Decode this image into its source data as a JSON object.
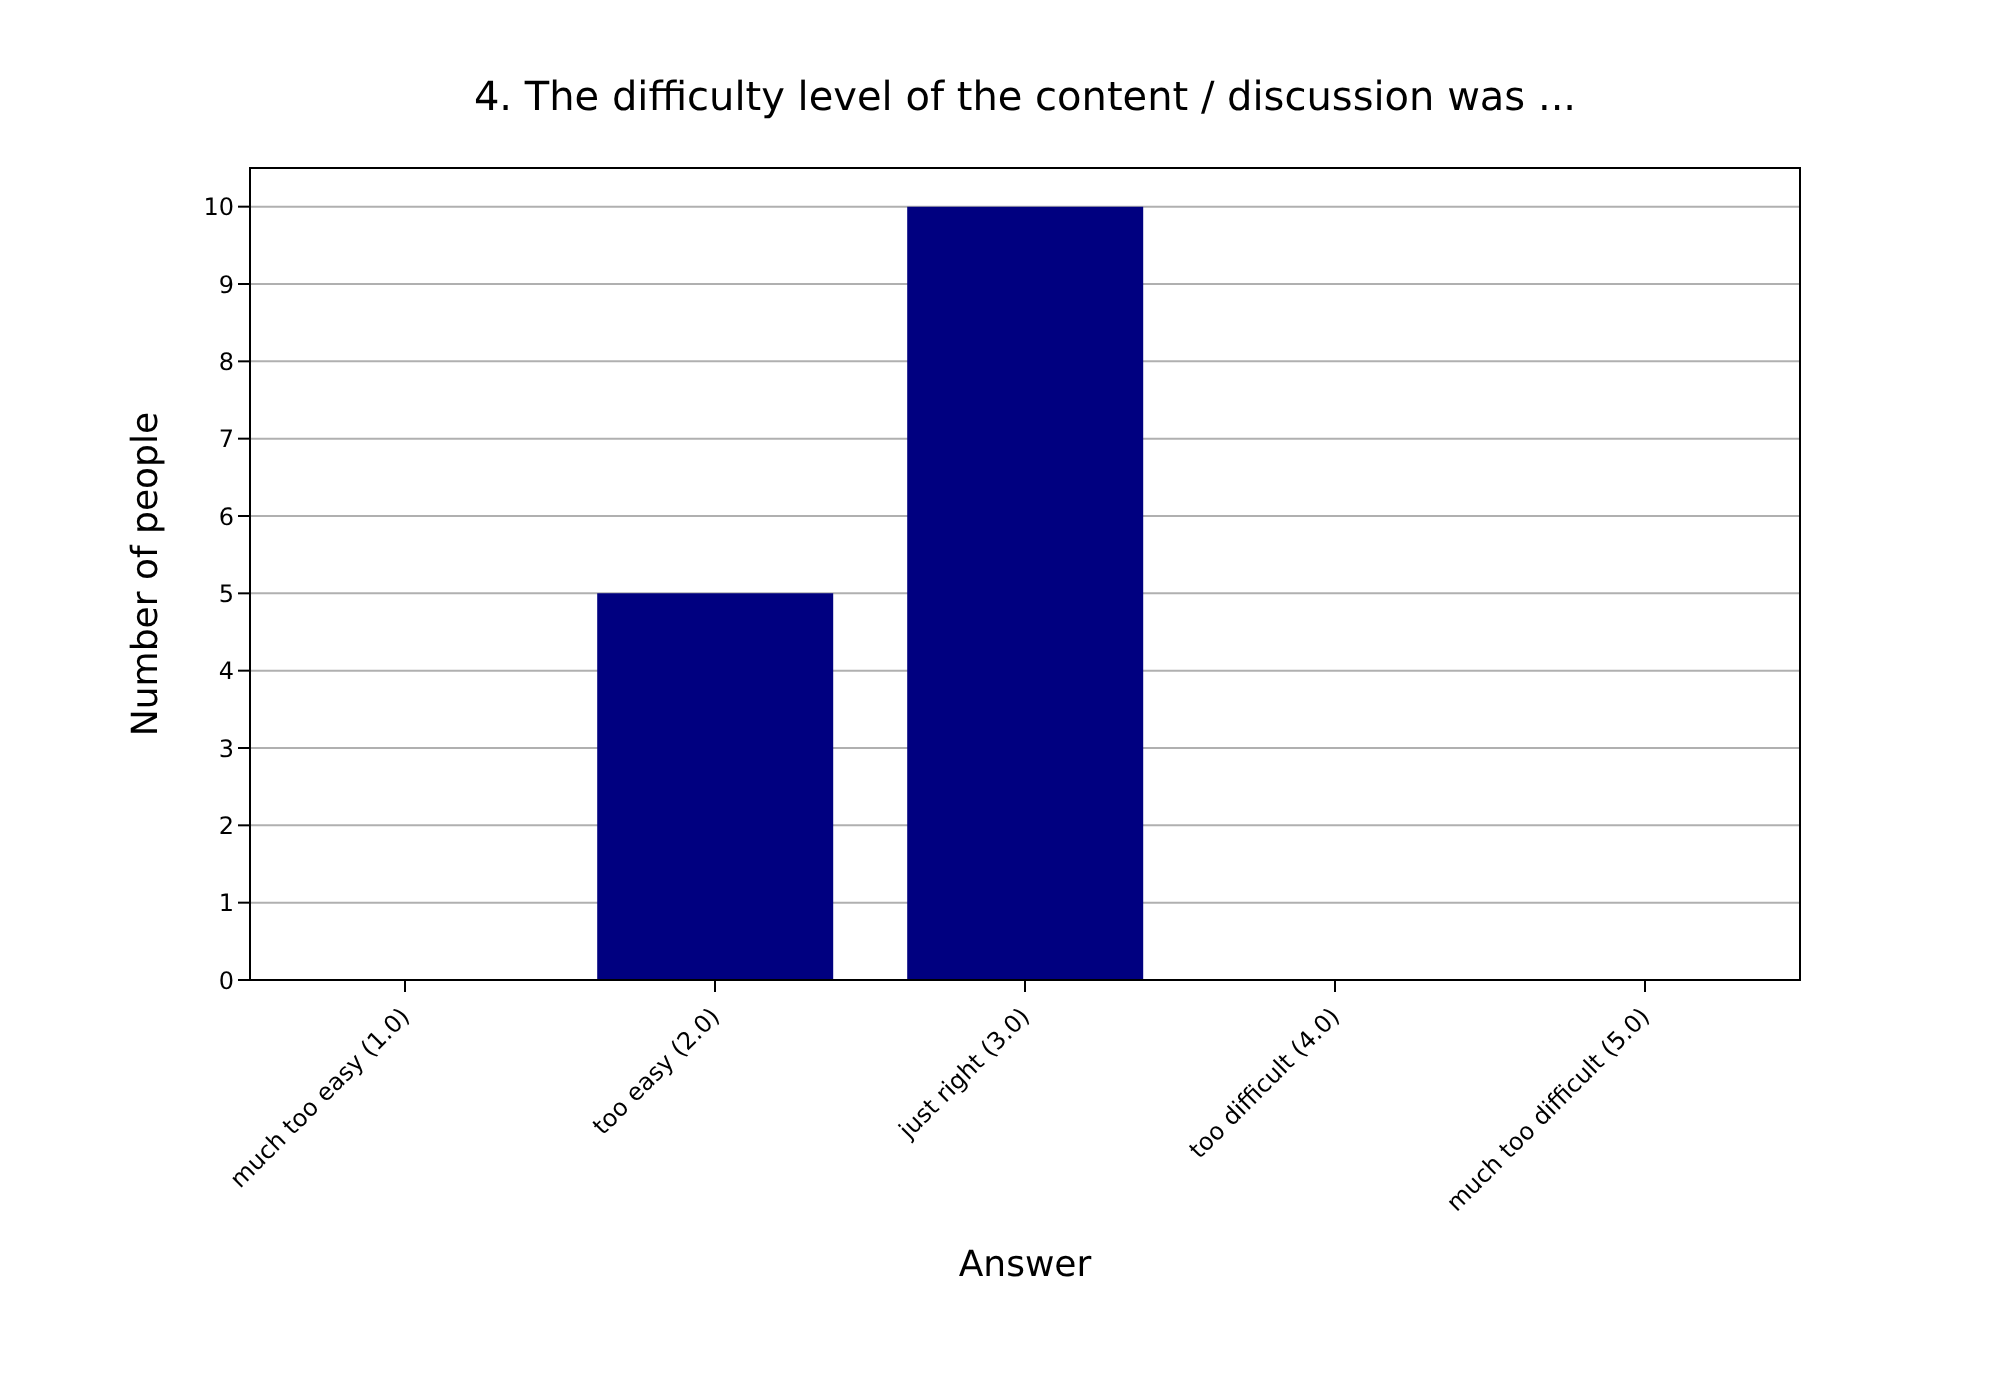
{
  "chart_data": {
    "type": "bar",
    "title": "4. The difficulty level of the content / discussion was ...",
    "xlabel": "Answer",
    "ylabel": "Number of people",
    "categories": [
      "much too easy (1.0)",
      "too easy (2.0)",
      "just right (3.0)",
      "too difficult (4.0)",
      "much too difficult (5.0)"
    ],
    "values": [
      0,
      5,
      10,
      0,
      0
    ],
    "color": "#000080",
    "ylim": [
      0,
      10.5
    ],
    "yticks": [
      0,
      1,
      2,
      3,
      4,
      5,
      6,
      7,
      8,
      9,
      10
    ],
    "grid": "y",
    "legend": false
  }
}
